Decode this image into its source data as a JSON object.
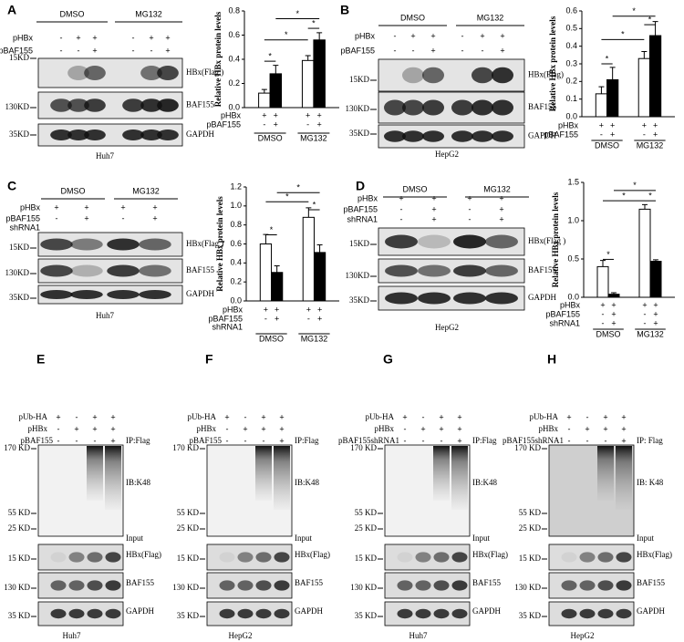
{
  "panels": [
    {
      "letter": "A",
      "treatments": [
        "DMSO",
        "MG132"
      ],
      "conditions": [
        {
          "label": [
            "pHBx"
          ],
          "signs": [
            "-",
            "+",
            "+",
            "-",
            "+",
            "+"
          ]
        },
        {
          "label": [
            "pBAF155"
          ],
          "signs": [
            "-",
            "-",
            "+",
            "-",
            "-",
            "+"
          ]
        }
      ],
      "markers": [
        "15KD",
        "130KD",
        "35KD"
      ],
      "bands": [
        "HBx(Flag )",
        "BAF155",
        "GAPDH"
      ],
      "cell": "Huh7"
    },
    {
      "letter": "B",
      "treatments": [
        "DMSO",
        "MG132"
      ],
      "conditions": [
        {
          "label": [
            "pHBx"
          ],
          "signs": [
            "-",
            "+",
            "+",
            "-",
            "+",
            "+"
          ]
        },
        {
          "label": [
            "pBAF155"
          ],
          "signs": [
            "-",
            "-",
            "+",
            "-",
            "-",
            "+"
          ]
        }
      ],
      "markers": [
        "15KD",
        "130KD",
        "35KD"
      ],
      "bands": [
        "HBx(Flag)",
        "BAF155",
        "GAPDH"
      ],
      "cell": "HepG2"
    },
    {
      "letter": "C",
      "treatments": [
        "DMSO",
        "MG132"
      ],
      "conditions": [
        {
          "label": [
            "pHBx"
          ],
          "signs": [
            "+",
            "+",
            "+",
            "+"
          ]
        },
        {
          "label": [
            "pBAF155",
            "shRNA1"
          ],
          "signs": [
            "-",
            "+",
            "-",
            "+"
          ]
        }
      ],
      "markers": [
        "15KD",
        "130KD",
        "35KD"
      ],
      "bands": [
        "HBx(Flag )",
        "BAF155",
        "GAPDH"
      ],
      "cell": "Huh7"
    },
    {
      "letter": "D",
      "treatments": [
        "DMSO",
        "MG132"
      ],
      "conditions": [
        {
          "label": [
            "pHBx"
          ],
          "signs": [
            "+",
            "+",
            "+",
            "+"
          ]
        },
        {
          "label": [
            "pBAF155"
          ],
          "signs": [
            "-",
            "+",
            "-",
            "+"
          ]
        },
        {
          "label": [
            "shRNA1"
          ],
          "signs": [
            "-",
            "+",
            "-",
            "+"
          ]
        }
      ],
      "markers": [
        "15KD",
        "130KD",
        "35KD"
      ],
      "bands": [
        "HBx(Flag )",
        "BAF155",
        "GAPDH"
      ],
      "cell": "HepG2"
    },
    {
      "letter": "E",
      "conditions": [
        {
          "label": [
            "pUb-HA"
          ],
          "signs": [
            "+",
            "-",
            "+",
            "+"
          ]
        },
        {
          "label": [
            "pHBx"
          ],
          "signs": [
            "-",
            "+",
            "+",
            "+"
          ]
        },
        {
          "label": [
            "pBAF155"
          ],
          "signs": [
            "-",
            "-",
            "-",
            "+"
          ]
        }
      ],
      "markers": [
        "170 KD",
        "55 KD",
        "25 KD",
        "15 KD",
        "130 KD",
        "35 KD"
      ],
      "ip": [
        "IP:Flag",
        "IB:K48"
      ],
      "input": "Input",
      "bands": [
        "HBx(Flag)",
        "BAF155",
        "GAPDH"
      ],
      "cell": "Huh7"
    },
    {
      "letter": "F",
      "conditions": [
        {
          "label": [
            "pUb-HA"
          ],
          "signs": [
            "+",
            "-",
            "+",
            "+"
          ]
        },
        {
          "label": [
            "pHBx"
          ],
          "signs": [
            "-",
            "+",
            "+",
            "+"
          ]
        },
        {
          "label": [
            "pBAF155"
          ],
          "signs": [
            "-",
            "-",
            "-",
            "+"
          ]
        }
      ],
      "markers": [
        "170 KD",
        "55 KD",
        "25 KD",
        "15 KD",
        "130 KD",
        "35 KD"
      ],
      "ip": [
        "IP:Flag",
        "IB:K48"
      ],
      "input": "Input",
      "bands": [
        "HBx(Flag)",
        "BAF155",
        "GAPDH"
      ],
      "cell": "HepG2"
    },
    {
      "letter": "G",
      "conditions": [
        {
          "label": [
            "pUb-HA"
          ],
          "signs": [
            "+",
            "-",
            "+",
            "+"
          ]
        },
        {
          "label": [
            "pHBx"
          ],
          "signs": [
            "-",
            "+",
            "+",
            "+"
          ]
        },
        {
          "label": [
            "pBAF155shRNA1"
          ],
          "signs": [
            "-",
            "-",
            "-",
            "+"
          ]
        }
      ],
      "markers": [
        "170 KD",
        "55 KD",
        "25 KD",
        "15 KD",
        "130 KD",
        "35 KD"
      ],
      "ip": [
        "IP:Flag",
        "IB:K48"
      ],
      "input": "Input",
      "bands": [
        "HBx(Flag)",
        "BAF155",
        "GAPDH"
      ],
      "cell": "Huh7"
    },
    {
      "letter": "H",
      "conditions": [
        {
          "label": [
            "pUb-HA"
          ],
          "signs": [
            "+",
            "-",
            "+",
            "+"
          ]
        },
        {
          "label": [
            "pHBx"
          ],
          "signs": [
            "-",
            "+",
            "+",
            "+"
          ]
        },
        {
          "label": [
            "pBAF155shRNA1"
          ],
          "signs": [
            "-",
            "-",
            "-",
            "+"
          ]
        }
      ],
      "markers": [
        "170 KD",
        "55 KD",
        "25 KD",
        "15 KD",
        "130 KD",
        "35 KD"
      ],
      "ip": [
        "IP: Flag",
        "IB: K48"
      ],
      "input": "Input",
      "bands": [
        "HBx(Flag)",
        "BAF155",
        "GAPDH"
      ],
      "cell": "HepG2"
    }
  ],
  "chart_data": [
    {
      "type": "bar",
      "ylabel": "Relative HBx protein levels",
      "categories": [
        "DMSO",
        "MG132"
      ],
      "series": [
        {
          "color": "#ffffff",
          "values": [
            0.12,
            0.39
          ],
          "errors": [
            0.03,
            0.04
          ]
        },
        {
          "color": "#000000",
          "values": [
            0.28,
            0.56
          ],
          "errors": [
            0.07,
            0.06
          ]
        }
      ],
      "ylim": [
        0,
        0.8
      ],
      "yticks": [
        {
          "value": 0,
          "label": "0.0"
        },
        0.2,
        0.4,
        0.6,
        0.8
      ],
      "conditions": [
        {
          "label": [
            "pHBx"
          ],
          "signs": [
            "+",
            "+",
            "+",
            "+"
          ]
        },
        {
          "label": [
            "pBAF155"
          ],
          "signs": [
            "-",
            "+",
            "-",
            "+"
          ]
        }
      ],
      "annotations": [
        "*",
        "*",
        "*",
        "*"
      ]
    },
    {
      "type": "bar",
      "ylabel": "Relative HBx protein levels",
      "categories": [
        "DMSO",
        "MG132"
      ],
      "series": [
        {
          "color": "#ffffff",
          "values": [
            0.13,
            0.33
          ],
          "errors": [
            0.04,
            0.04
          ]
        },
        {
          "color": "#000000",
          "values": [
            0.21,
            0.46
          ],
          "errors": [
            0.07,
            0.08
          ]
        }
      ],
      "ylim": [
        0,
        0.6
      ],
      "yticks": [
        {
          "value": 0,
          "label": "0.0"
        },
        0.1,
        0.2,
        0.3,
        0.4,
        0.5,
        0.6
      ],
      "conditions": [
        {
          "label": [
            "pHBx"
          ],
          "signs": [
            "+",
            "+",
            "+",
            "+"
          ]
        },
        {
          "label": [
            "pBAF155"
          ],
          "signs": [
            "-",
            "+",
            "-",
            "+"
          ]
        }
      ],
      "annotations": [
        "*",
        "*",
        "*",
        "*"
      ]
    },
    {
      "type": "bar",
      "ylabel": "Relative HBx protein levels",
      "categories": [
        "DMSO",
        "MG132"
      ],
      "series": [
        {
          "color": "#ffffff",
          "values": [
            0.6,
            0.88
          ],
          "errors": [
            0.1,
            0.1
          ]
        },
        {
          "color": "#000000",
          "values": [
            0.3,
            0.51
          ],
          "errors": [
            0.07,
            0.08
          ]
        }
      ],
      "ylim": [
        0,
        1.2
      ],
      "yticks": [
        {
          "value": 0,
          "label": "0.0"
        },
        0.2,
        0.4,
        0.6,
        0.8,
        {
          "value": 1,
          "label": "1.0"
        },
        1.2
      ],
      "conditions": [
        {
          "label": [
            "pHBx"
          ],
          "signs": [
            "+",
            "+",
            "+",
            "+"
          ]
        },
        {
          "label": [
            "pBAF155",
            "shRNA1"
          ],
          "signs": [
            "-",
            "+",
            "-",
            "+"
          ]
        }
      ],
      "annotations": [
        "*",
        "*",
        "*",
        "*"
      ]
    },
    {
      "type": "bar",
      "ylabel": "Relative HBx protein levels",
      "categories": [
        "DMSO",
        "MG132"
      ],
      "series": [
        {
          "color": "#ffffff",
          "values": [
            0.4,
            1.15
          ],
          "errors": [
            0.08,
            0.06
          ]
        },
        {
          "color": "#000000",
          "values": [
            0.04,
            0.47
          ],
          "errors": [
            0.02,
            0.02
          ]
        }
      ],
      "ylim": [
        0,
        1.5
      ],
      "yticks": [
        {
          "value": 0,
          "label": "0.0"
        },
        0.5,
        {
          "value": 1,
          "label": "1.0"
        },
        1.5
      ],
      "conditions": [
        {
          "label": [
            "pHBx"
          ],
          "signs": [
            "+",
            "+",
            "+",
            "+"
          ]
        },
        {
          "label": [
            "pBAF155"
          ],
          "signs": [
            "-",
            "+",
            "-",
            "+"
          ]
        },
        {
          "label": [
            "shRNA1"
          ],
          "signs": [
            "-",
            "+",
            "-",
            "+"
          ]
        }
      ],
      "annotations": [
        "*",
        "*",
        "*",
        "*"
      ]
    }
  ]
}
